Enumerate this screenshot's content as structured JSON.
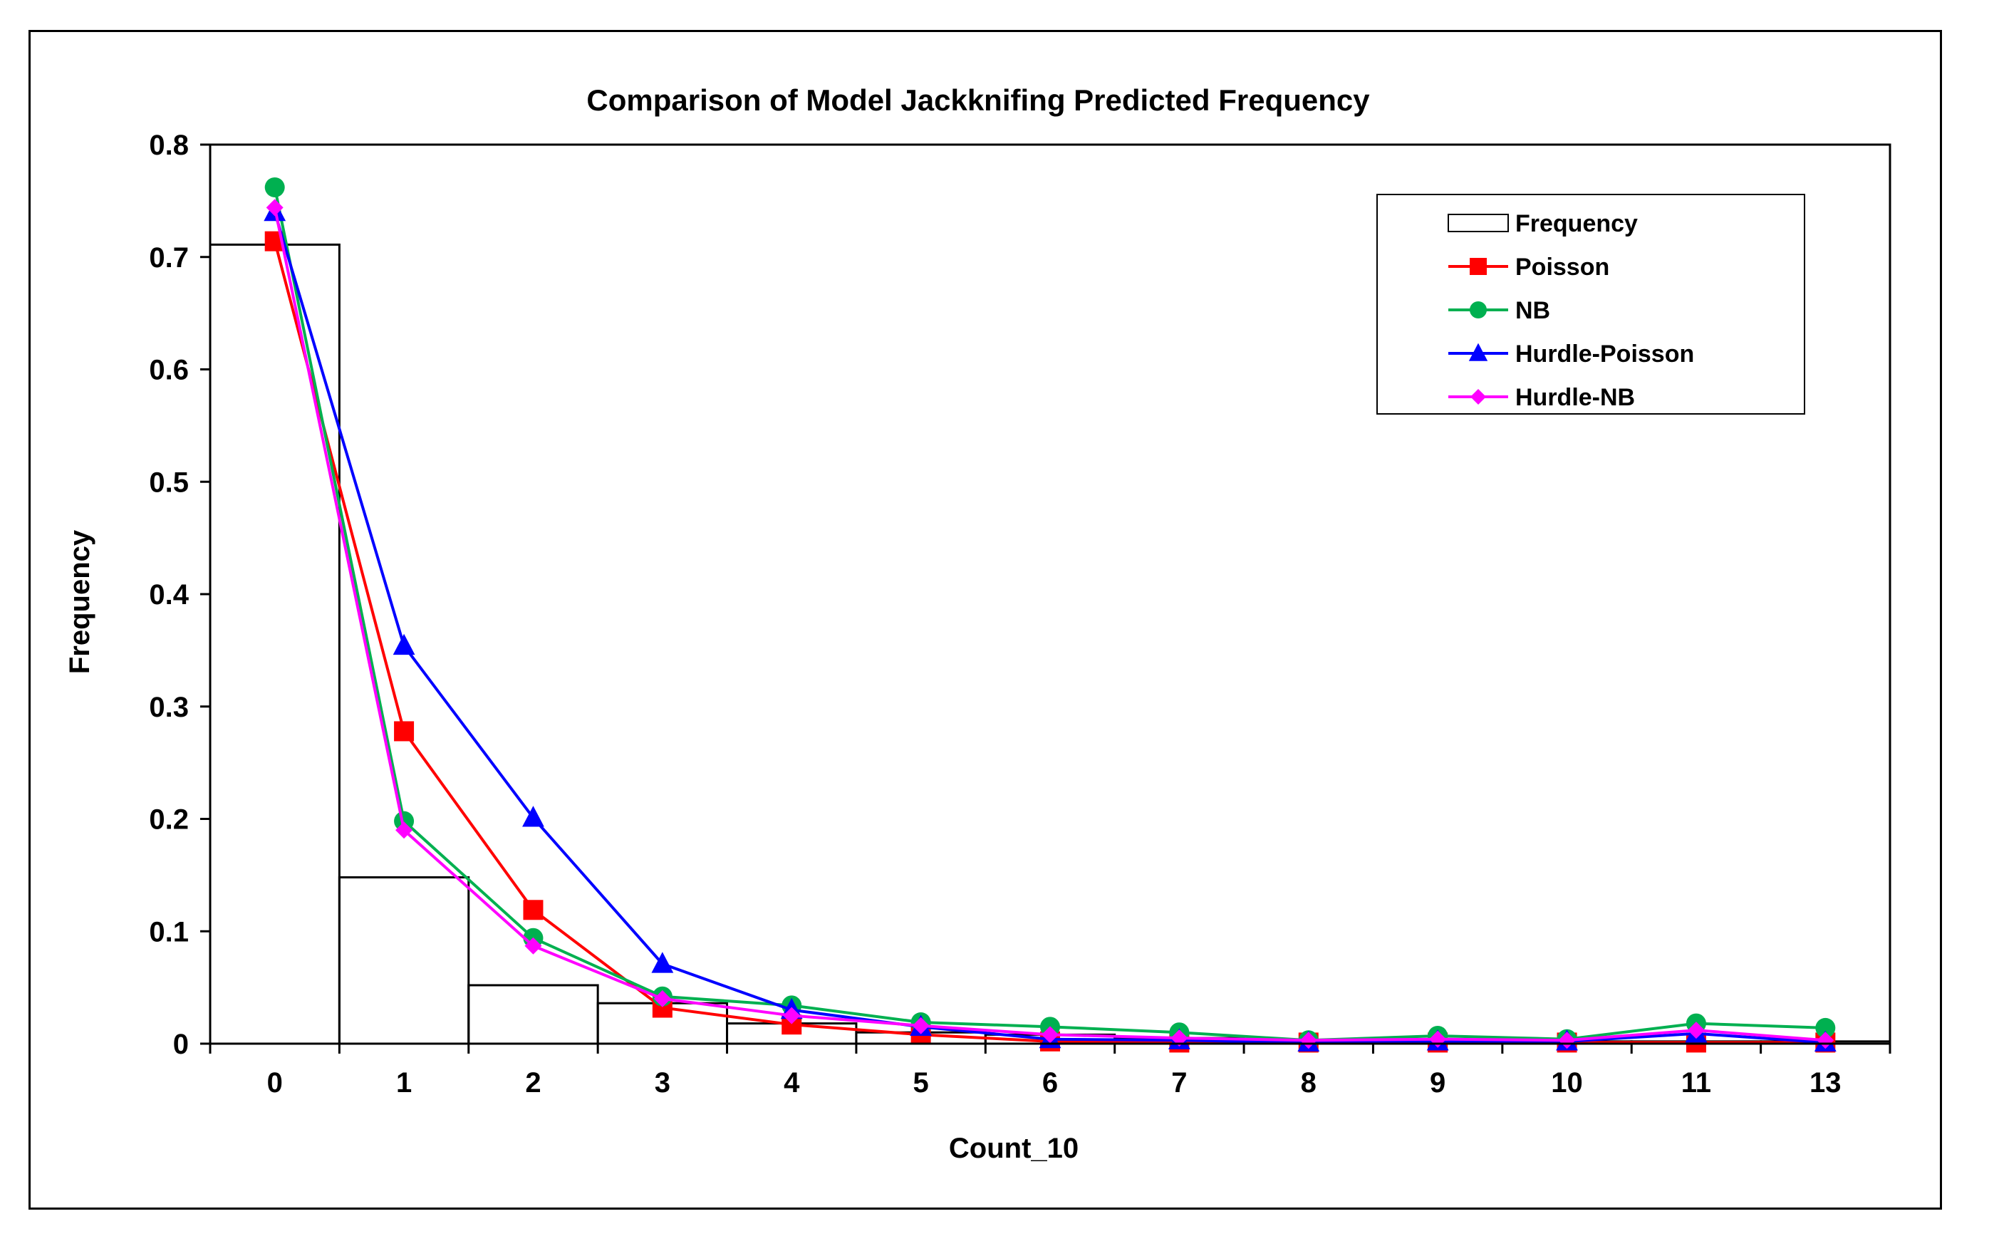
{
  "chart_data": {
    "type": "bar+line",
    "title": "Comparison of Model Jackknifing Predicted Frequency",
    "xlabel": "Count_10",
    "ylabel": "Frequency",
    "ylim": [
      0,
      0.8
    ],
    "yticks": [
      "0",
      "0.1",
      "0.2",
      "0.3",
      "0.4",
      "0.5",
      "0.6",
      "0.7",
      "0.8"
    ],
    "categories": [
      "0",
      "1",
      "2",
      "3",
      "4",
      "5",
      "6",
      "7",
      "8",
      "9",
      "10",
      "11",
      "13"
    ],
    "bars": {
      "name": "Frequency",
      "color": "#000000",
      "values": [
        0.711,
        0.148,
        0.052,
        0.036,
        0.018,
        0.01,
        0.008,
        0.005,
        0.003,
        0.002,
        0.002,
        0.002,
        0.002
      ]
    },
    "series": [
      {
        "name": "Poisson",
        "color": "#ff0000",
        "marker": "square",
        "values": [
          0.714,
          0.278,
          0.119,
          0.032,
          0.017,
          0.008,
          0.002,
          0.001,
          0.001,
          0.001,
          0.001,
          0.001,
          0.001
        ]
      },
      {
        "name": "NB",
        "color": "#00b050",
        "marker": "circle",
        "values": [
          0.762,
          0.198,
          0.094,
          0.042,
          0.034,
          0.019,
          0.015,
          0.01,
          0.003,
          0.007,
          0.004,
          0.018,
          0.014
        ]
      },
      {
        "name": "Hurdle-Poisson",
        "color": "#0000ff",
        "marker": "triangle",
        "values": [
          0.74,
          0.354,
          0.201,
          0.071,
          0.03,
          0.015,
          0.004,
          0.003,
          0.001,
          0.002,
          0.002,
          0.009,
          0.001
        ]
      },
      {
        "name": "Hurdle-NB",
        "color": "#ff00ff",
        "marker": "diamond",
        "values": [
          0.744,
          0.19,
          0.087,
          0.04,
          0.025,
          0.016,
          0.008,
          0.005,
          0.003,
          0.004,
          0.003,
          0.012,
          0.003
        ]
      }
    ],
    "legend": {
      "position": "top-right"
    },
    "grid": false
  }
}
